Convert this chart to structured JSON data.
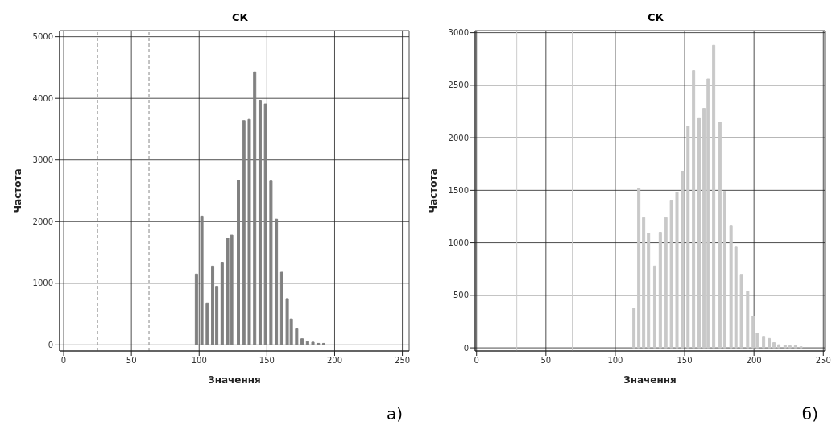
{
  "chart_data": [
    {
      "type": "bar",
      "title": "СК",
      "xlabel": "Значення",
      "ylabel": "Частота",
      "x": [
        98,
        102,
        106,
        110,
        113,
        117,
        121,
        124,
        129,
        133,
        137,
        141,
        145,
        149,
        153,
        157,
        161,
        165,
        168,
        172,
        176,
        180,
        184,
        188,
        192
      ],
      "values": [
        1150,
        2090,
        680,
        1280,
        950,
        1330,
        1730,
        1780,
        2670,
        3640,
        3660,
        4430,
        3970,
        3910,
        2660,
        2040,
        1180,
        750,
        420,
        260,
        100,
        55,
        45,
        25,
        25
      ],
      "color": "#808080",
      "xlim": [
        -3,
        255
      ],
      "xticks": [
        0,
        50,
        100,
        150,
        200,
        250
      ],
      "ylim": [
        -100,
        5100
      ],
      "yticks": [
        0,
        1000,
        2000,
        3000,
        4000,
        5000
      ],
      "grid": true,
      "ref_lines": [
        {
          "axis": "x",
          "value": 25,
          "color": "#888888",
          "line_style": "dashed"
        },
        {
          "axis": "x",
          "value": 63,
          "color": "#888888",
          "line_style": "dashed"
        }
      ],
      "annotations": [
        "а)"
      ]
    },
    {
      "type": "bar",
      "title": "СК",
      "xlabel": "Значення",
      "ylabel": "Частота",
      "x": [
        113.5,
        117,
        120.5,
        124,
        128.5,
        132.5,
        136.5,
        140.5,
        144.5,
        148.5,
        152.5,
        156.5,
        160.5,
        164,
        167,
        171,
        175.5,
        179,
        183.5,
        187,
        191,
        195.5,
        199.5,
        202.5,
        207,
        211,
        214.5,
        218,
        222.5,
        226,
        230,
        234
      ],
      "values": [
        380,
        1520,
        1240,
        1090,
        780,
        1100,
        1240,
        1400,
        1480,
        1680,
        2110,
        2640,
        2190,
        2280,
        2560,
        2880,
        2150,
        1490,
        1160,
        960,
        700,
        540,
        300,
        140,
        110,
        90,
        50,
        30,
        25,
        20,
        20,
        10
      ],
      "color": "#c8c8c8",
      "xlim": [
        -1,
        251
      ],
      "xticks": [
        0,
        50,
        100,
        150,
        200,
        250
      ],
      "ylim": [
        -30,
        3020
      ],
      "yticks": [
        0,
        500,
        1000,
        1500,
        2000,
        2500,
        3000
      ],
      "grid": true,
      "ref_lines": [
        {
          "axis": "x",
          "value": 29,
          "color": "#cccccc",
          "line_style": "solid"
        },
        {
          "axis": "x",
          "value": 69,
          "color": "#cccccc",
          "line_style": "solid"
        }
      ],
      "annotations": [
        "б)"
      ]
    }
  ]
}
